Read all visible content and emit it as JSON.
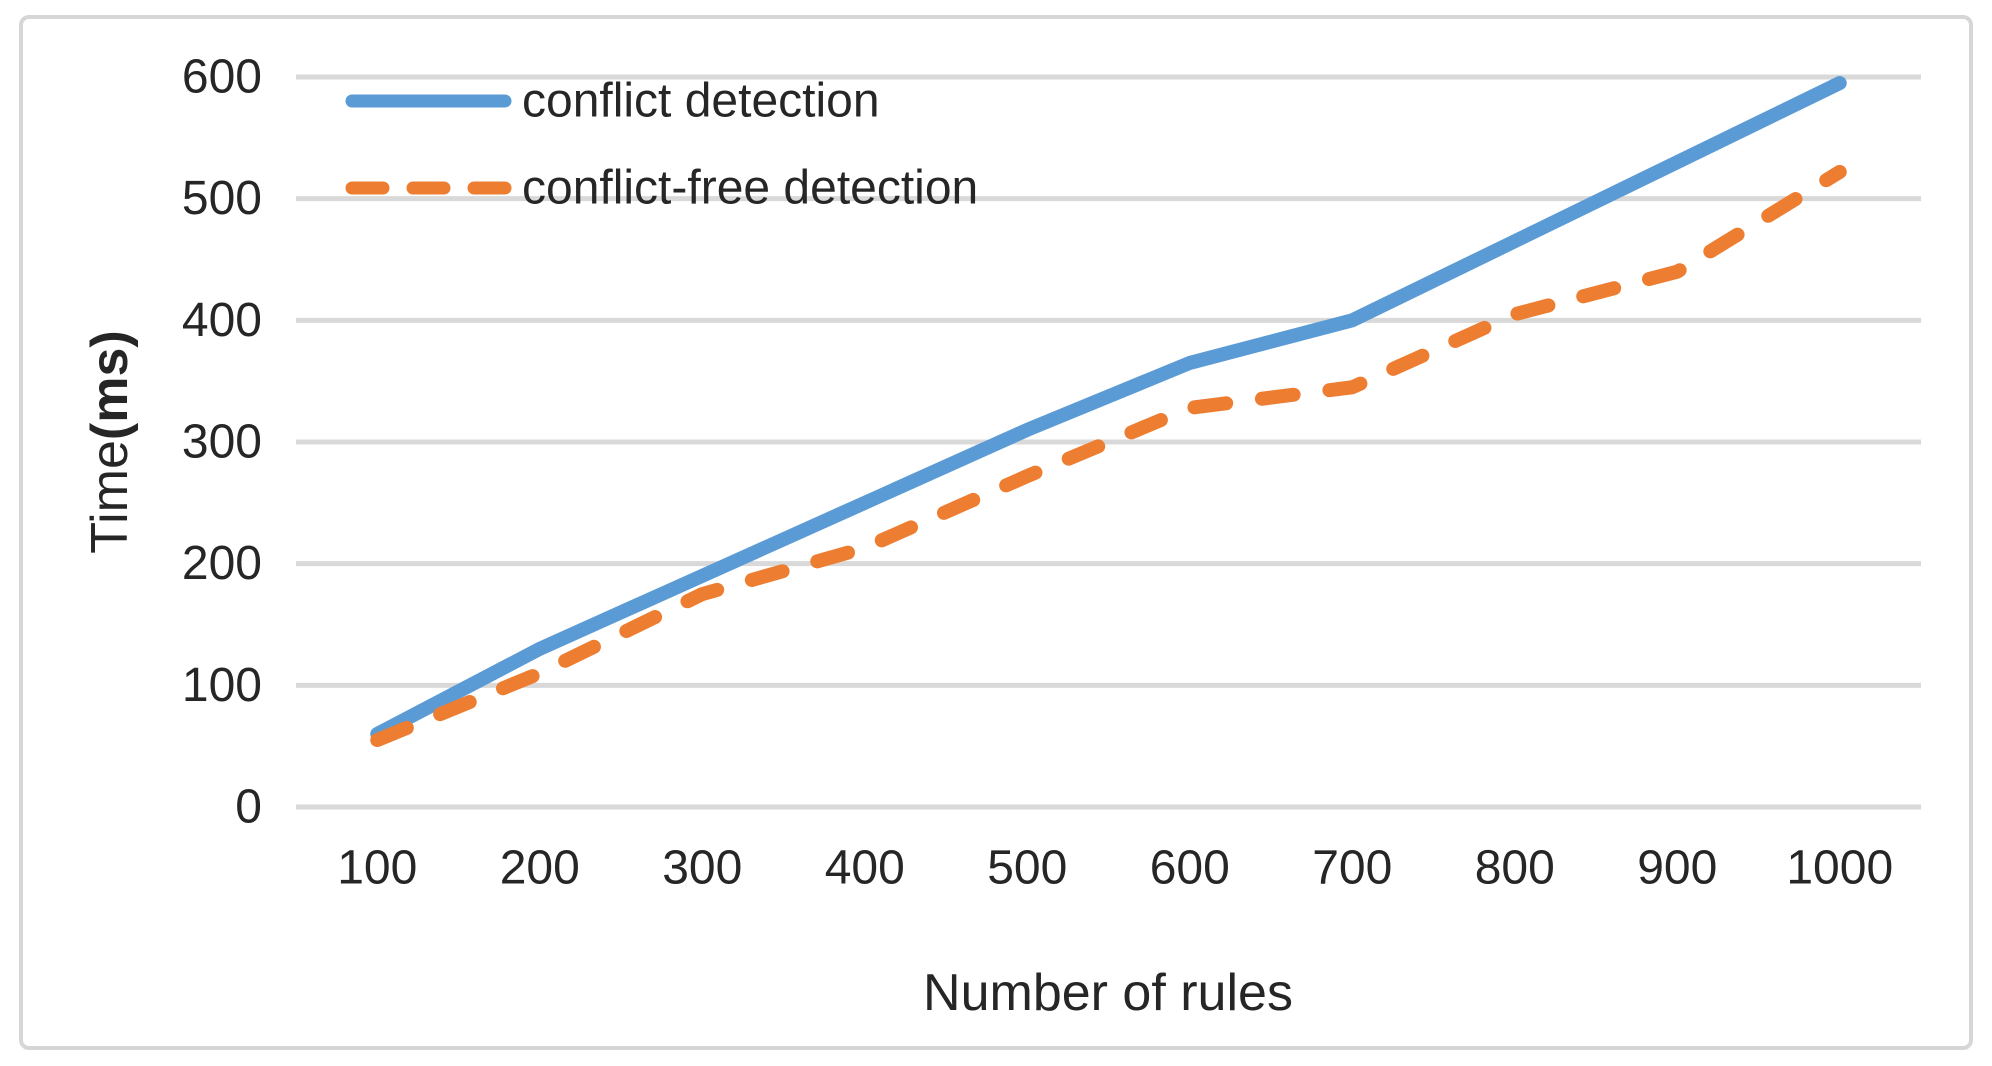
{
  "chart_data": {
    "type": "line",
    "title": "",
    "xlabel": "Number of rules",
    "ylabel": "Time(ms)",
    "ylabel_normal": "Time",
    "ylabel_bold": "(ms)",
    "categories": [
      100,
      200,
      300,
      400,
      500,
      600,
      700,
      800,
      900,
      1000
    ],
    "series": [
      {
        "name": "conflict detection",
        "style": "solid",
        "color": "#5B9BD5",
        "values": [
          60,
          130,
          190,
          250,
          310,
          365,
          400,
          465,
          530,
          595
        ]
      },
      {
        "name": "conflict-free detection",
        "style": "dashed",
        "color": "#ED7D31",
        "values": [
          55,
          110,
          175,
          213,
          272,
          328,
          345,
          405,
          440,
          522
        ]
      }
    ],
    "y_ticks": [
      0,
      100,
      200,
      300,
      400,
      500,
      600
    ],
    "ylim": [
      0,
      600
    ],
    "grid": "horizontal",
    "legend_position": "top-left",
    "colors": {
      "gridline": "#D9D9D9",
      "axis_text": "#262626",
      "card_border": "#D6D6D6",
      "background": "#FFFFFF"
    }
  }
}
